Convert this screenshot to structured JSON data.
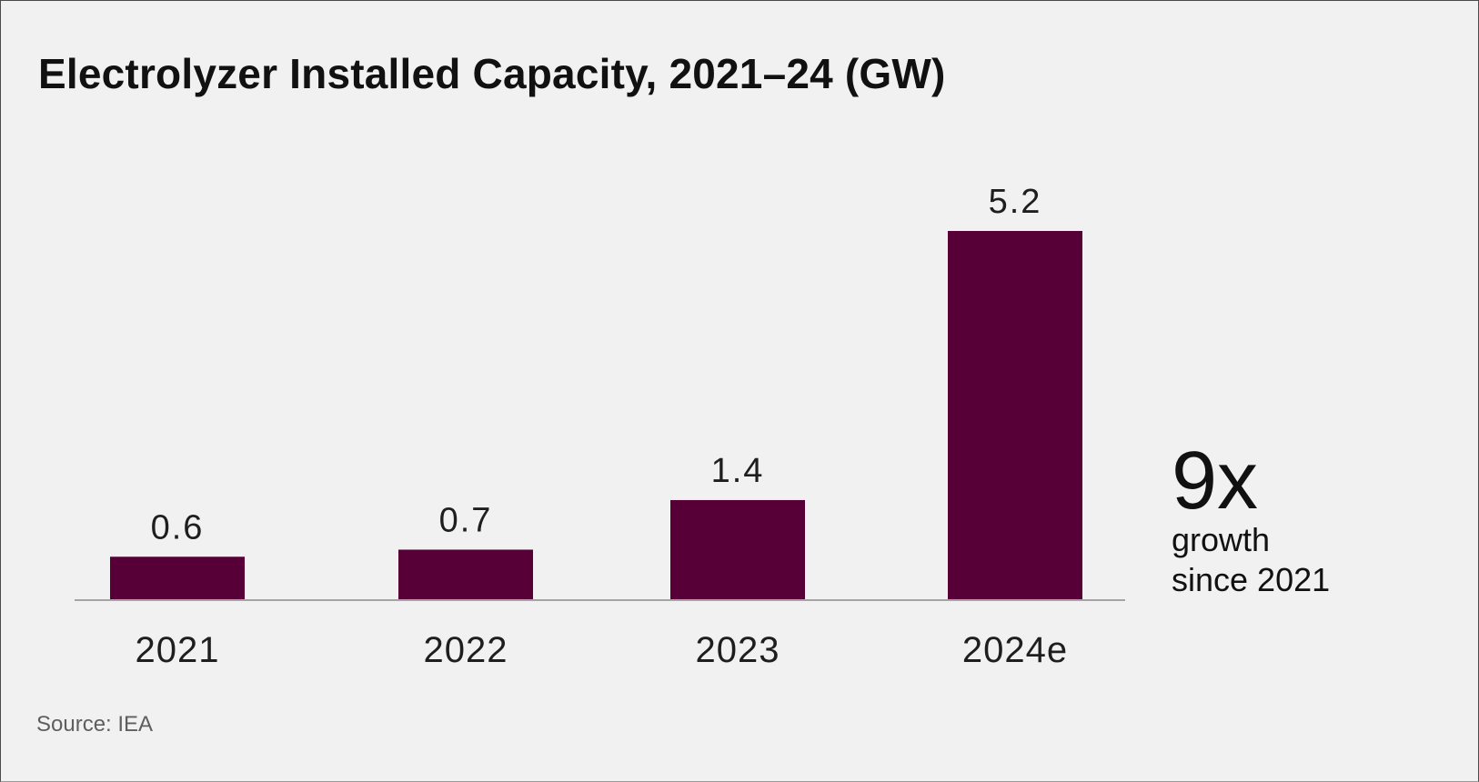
{
  "chart_data": {
    "type": "bar",
    "title": "Electrolyzer Installed Capacity, 2021–24 (GW)",
    "categories": [
      "2021",
      "2022",
      "2023",
      "2024e"
    ],
    "values": [
      0.6,
      0.7,
      1.4,
      5.2
    ],
    "value_labels": [
      "0.6",
      "0.7",
      "1.4",
      "5.2"
    ],
    "xlabel": "",
    "ylabel": "GW",
    "ylim": [
      0,
      5.2
    ],
    "grid": false,
    "bar_color": "#560037",
    "annotation": {
      "headline": "9x",
      "line1": "growth",
      "line2": "since 2021"
    },
    "source": "Source: IEA"
  }
}
